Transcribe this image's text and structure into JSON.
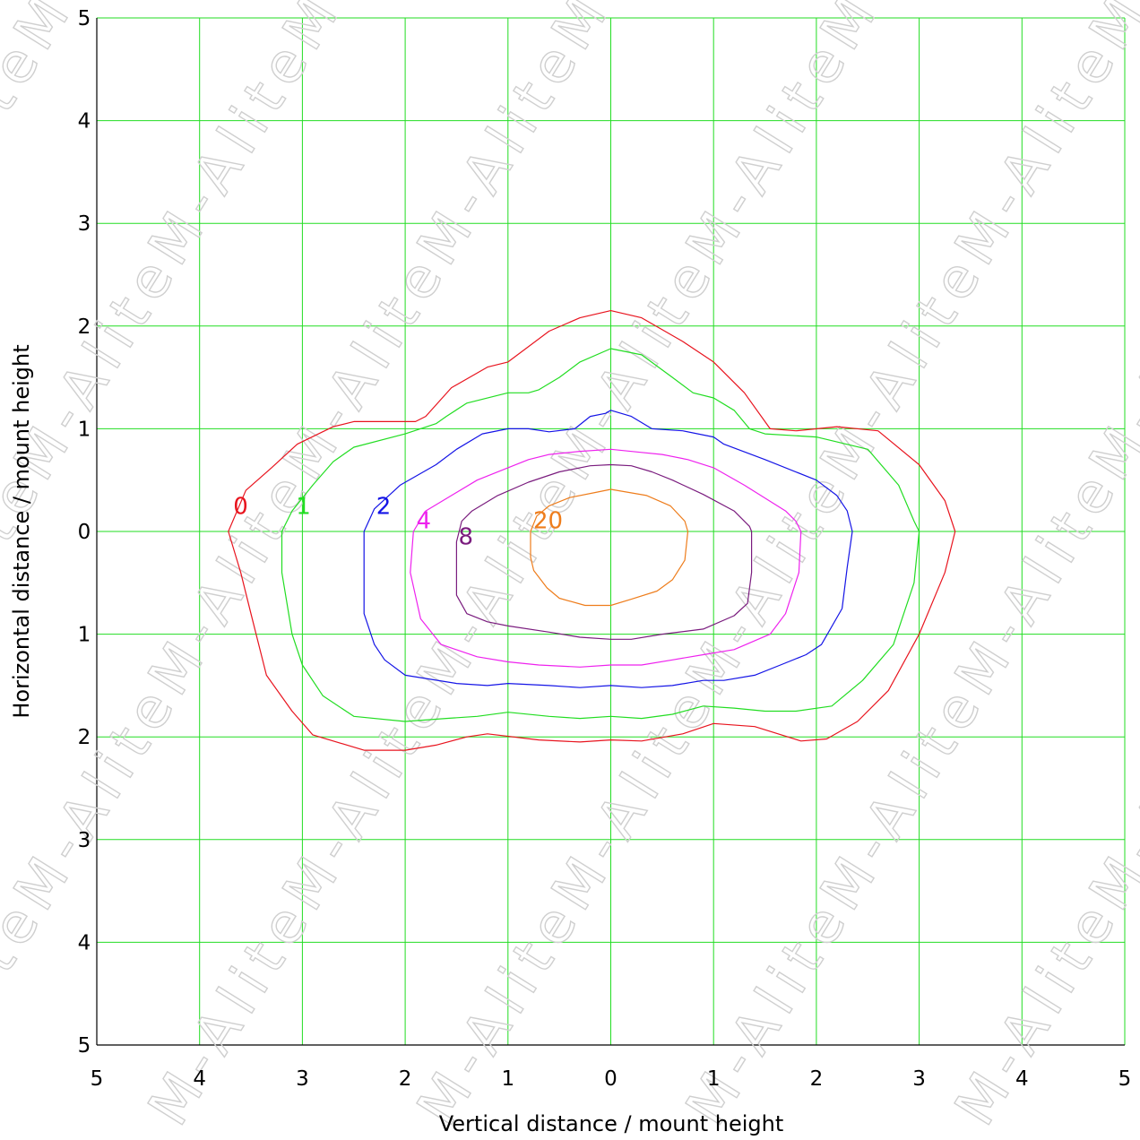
{
  "chart_data": {
    "type": "contour",
    "title": "",
    "xlabel": "Vertical distance / mount height",
    "ylabel": "Horizontal distance / mount height",
    "xlim": [
      -5,
      5
    ],
    "ylim": [
      -5,
      5
    ],
    "x_tick_labels": [
      "5",
      "4",
      "3",
      "2",
      "1",
      "0",
      "1",
      "2",
      "3",
      "4",
      "5"
    ],
    "y_tick_labels": [
      "5",
      "4",
      "3",
      "2",
      "1",
      "0",
      "1",
      "2",
      "3",
      "4",
      "5"
    ],
    "grid": true,
    "grid_color": "#22dd22",
    "watermark": "M-Alite",
    "contours": [
      {
        "label": "0",
        "color": "#e8141e",
        "label_at": [
          -3.6,
          0.25
        ],
        "points": [
          [
            0,
            2.15
          ],
          [
            0.3,
            2.08
          ],
          [
            0.7,
            1.85
          ],
          [
            1.0,
            1.65
          ],
          [
            1.3,
            1.35
          ],
          [
            1.55,
            1.0
          ],
          [
            1.8,
            0.98
          ],
          [
            2.2,
            1.02
          ],
          [
            2.6,
            0.98
          ],
          [
            3.0,
            0.65
          ],
          [
            3.25,
            0.3
          ],
          [
            3.35,
            0
          ],
          [
            3.25,
            -0.4
          ],
          [
            3.0,
            -1.0
          ],
          [
            2.7,
            -1.55
          ],
          [
            2.4,
            -1.85
          ],
          [
            2.1,
            -2.02
          ],
          [
            1.85,
            -2.04
          ],
          [
            1.4,
            -1.9
          ],
          [
            1.0,
            -1.87
          ],
          [
            0.7,
            -1.97
          ],
          [
            0.3,
            -2.04
          ],
          [
            0,
            -2.03
          ],
          [
            -0.3,
            -2.05
          ],
          [
            -0.7,
            -2.03
          ],
          [
            -1.2,
            -1.97
          ],
          [
            -1.4,
            -2.0
          ],
          [
            -1.7,
            -2.08
          ],
          [
            -2.0,
            -2.13
          ],
          [
            -2.4,
            -2.13
          ],
          [
            -2.9,
            -1.98
          ],
          [
            -3.1,
            -1.75
          ],
          [
            -3.35,
            -1.4
          ],
          [
            -3.5,
            -0.8
          ],
          [
            -3.6,
            -0.4
          ],
          [
            -3.72,
            0
          ],
          [
            -3.55,
            0.4
          ],
          [
            -3.3,
            0.62
          ],
          [
            -3.05,
            0.85
          ],
          [
            -2.7,
            1.02
          ],
          [
            -2.5,
            1.07
          ],
          [
            -1.9,
            1.07
          ],
          [
            -1.8,
            1.12
          ],
          [
            -1.55,
            1.4
          ],
          [
            -1.2,
            1.6
          ],
          [
            -1.0,
            1.65
          ],
          [
            -0.6,
            1.95
          ],
          [
            -0.3,
            2.08
          ]
        ]
      },
      {
        "label": "1",
        "color": "#22dd22",
        "label_at": [
          -2.99,
          0.25
        ],
        "points": [
          [
            0,
            1.78
          ],
          [
            0.3,
            1.72
          ],
          [
            0.6,
            1.5
          ],
          [
            0.8,
            1.35
          ],
          [
            1.0,
            1.3
          ],
          [
            1.2,
            1.18
          ],
          [
            1.35,
            1.0
          ],
          [
            1.5,
            0.95
          ],
          [
            2.0,
            0.92
          ],
          [
            2.5,
            0.8
          ],
          [
            2.8,
            0.45
          ],
          [
            2.95,
            0.1
          ],
          [
            3.0,
            0
          ],
          [
            2.95,
            -0.5
          ],
          [
            2.75,
            -1.1
          ],
          [
            2.45,
            -1.45
          ],
          [
            2.15,
            -1.7
          ],
          [
            1.8,
            -1.75
          ],
          [
            1.5,
            -1.75
          ],
          [
            1.2,
            -1.72
          ],
          [
            0.9,
            -1.7
          ],
          [
            0.6,
            -1.78
          ],
          [
            0.3,
            -1.82
          ],
          [
            0,
            -1.8
          ],
          [
            -0.3,
            -1.82
          ],
          [
            -0.6,
            -1.8
          ],
          [
            -1.0,
            -1.76
          ],
          [
            -1.3,
            -1.8
          ],
          [
            -1.6,
            -1.82
          ],
          [
            -2.0,
            -1.85
          ],
          [
            -2.5,
            -1.8
          ],
          [
            -2.8,
            -1.6
          ],
          [
            -3.0,
            -1.3
          ],
          [
            -3.1,
            -1.0
          ],
          [
            -3.2,
            -0.4
          ],
          [
            -3.2,
            0
          ],
          [
            -3.1,
            0.2
          ],
          [
            -2.9,
            0.45
          ],
          [
            -2.7,
            0.68
          ],
          [
            -2.5,
            0.82
          ],
          [
            -2.0,
            0.95
          ],
          [
            -1.7,
            1.05
          ],
          [
            -1.6,
            1.12
          ],
          [
            -1.4,
            1.25
          ],
          [
            -1.0,
            1.35
          ],
          [
            -0.8,
            1.35
          ],
          [
            -0.7,
            1.38
          ],
          [
            -0.5,
            1.5
          ],
          [
            -0.3,
            1.65
          ]
        ]
      },
      {
        "label": "2",
        "color": "#1414e6",
        "label_at": [
          -2.21,
          0.25
        ],
        "points": [
          [
            0,
            1.18
          ],
          [
            0.2,
            1.12
          ],
          [
            0.4,
            1.0
          ],
          [
            0.7,
            0.98
          ],
          [
            1.0,
            0.92
          ],
          [
            1.1,
            0.85
          ],
          [
            1.5,
            0.7
          ],
          [
            2.0,
            0.5
          ],
          [
            2.2,
            0.35
          ],
          [
            2.3,
            0.2
          ],
          [
            2.35,
            0
          ],
          [
            2.3,
            -0.35
          ],
          [
            2.25,
            -0.75
          ],
          [
            2.05,
            -1.1
          ],
          [
            1.9,
            -1.2
          ],
          [
            1.65,
            -1.3
          ],
          [
            1.4,
            -1.4
          ],
          [
            1.1,
            -1.45
          ],
          [
            0.9,
            -1.45
          ],
          [
            0.6,
            -1.5
          ],
          [
            0.3,
            -1.52
          ],
          [
            0,
            -1.5
          ],
          [
            -0.3,
            -1.52
          ],
          [
            -0.6,
            -1.5
          ],
          [
            -1.0,
            -1.48
          ],
          [
            -1.2,
            -1.5
          ],
          [
            -1.5,
            -1.48
          ],
          [
            -2.0,
            -1.4
          ],
          [
            -2.2,
            -1.25
          ],
          [
            -2.3,
            -1.1
          ],
          [
            -2.4,
            -0.8
          ],
          [
            -2.4,
            0
          ],
          [
            -2.3,
            0.22
          ],
          [
            -2.05,
            0.45
          ],
          [
            -1.7,
            0.65
          ],
          [
            -1.5,
            0.8
          ],
          [
            -1.25,
            0.95
          ],
          [
            -1.0,
            1.0
          ],
          [
            -0.8,
            1.0
          ],
          [
            -0.6,
            0.97
          ],
          [
            -0.35,
            1.0
          ],
          [
            -0.2,
            1.12
          ],
          [
            -0.05,
            1.15
          ]
        ]
      },
      {
        "label": "4",
        "color": "#ee22ee",
        "label_at": [
          -1.82,
          0.11
        ],
        "points": [
          [
            0,
            0.8
          ],
          [
            0.3,
            0.77
          ],
          [
            0.5,
            0.75
          ],
          [
            0.75,
            0.7
          ],
          [
            1.0,
            0.62
          ],
          [
            1.3,
            0.45
          ],
          [
            1.7,
            0.2
          ],
          [
            1.8,
            0.1
          ],
          [
            1.85,
            0
          ],
          [
            1.83,
            -0.4
          ],
          [
            1.7,
            -0.8
          ],
          [
            1.55,
            -1.0
          ],
          [
            1.2,
            -1.15
          ],
          [
            0.9,
            -1.2
          ],
          [
            0.6,
            -1.25
          ],
          [
            0.3,
            -1.3
          ],
          [
            0,
            -1.3
          ],
          [
            -0.3,
            -1.32
          ],
          [
            -0.7,
            -1.3
          ],
          [
            -1.0,
            -1.27
          ],
          [
            -1.3,
            -1.22
          ],
          [
            -1.65,
            -1.1
          ],
          [
            -1.85,
            -0.85
          ],
          [
            -1.95,
            -0.4
          ],
          [
            -1.92,
            0
          ],
          [
            -1.8,
            0.2
          ],
          [
            -1.55,
            0.35
          ],
          [
            -1.3,
            0.5
          ],
          [
            -1.0,
            0.62
          ],
          [
            -0.8,
            0.7
          ],
          [
            -0.6,
            0.75
          ],
          [
            -0.3,
            0.78
          ]
        ]
      },
      {
        "label": "8",
        "color": "#7a1c7e",
        "label_at": [
          -1.41,
          -0.05
        ],
        "points": [
          [
            0,
            0.65
          ],
          [
            0.2,
            0.64
          ],
          [
            0.4,
            0.58
          ],
          [
            0.6,
            0.5
          ],
          [
            0.9,
            0.36
          ],
          [
            1.2,
            0.2
          ],
          [
            1.35,
            0.05
          ],
          [
            1.37,
            0
          ],
          [
            1.37,
            -0.4
          ],
          [
            1.33,
            -0.7
          ],
          [
            1.2,
            -0.82
          ],
          [
            0.9,
            -0.95
          ],
          [
            0.5,
            -1.0
          ],
          [
            0.2,
            -1.05
          ],
          [
            0,
            -1.05
          ],
          [
            -0.3,
            -1.03
          ],
          [
            -0.6,
            -0.98
          ],
          [
            -1.0,
            -0.92
          ],
          [
            -1.2,
            -0.88
          ],
          [
            -1.4,
            -0.8
          ],
          [
            -1.5,
            -0.62
          ],
          [
            -1.5,
            -0.3
          ],
          [
            -1.5,
            -0.1
          ],
          [
            -1.45,
            0.1
          ],
          [
            -1.35,
            0.2
          ],
          [
            -1.1,
            0.35
          ],
          [
            -0.8,
            0.48
          ],
          [
            -0.5,
            0.58
          ],
          [
            -0.2,
            0.64
          ]
        ]
      },
      {
        "label": "20",
        "color": "#ee7d1c",
        "label_at": [
          -0.61,
          0.11
        ],
        "points": [
          [
            0,
            0.41
          ],
          [
            0.35,
            0.35
          ],
          [
            0.58,
            0.25
          ],
          [
            0.72,
            0.1
          ],
          [
            0.75,
            0
          ],
          [
            0.72,
            -0.28
          ],
          [
            0.6,
            -0.47
          ],
          [
            0.45,
            -0.58
          ],
          [
            0.2,
            -0.66
          ],
          [
            0,
            -0.72
          ],
          [
            -0.25,
            -0.72
          ],
          [
            -0.5,
            -0.65
          ],
          [
            -0.62,
            -0.55
          ],
          [
            -0.75,
            -0.38
          ],
          [
            -0.78,
            -0.25
          ],
          [
            -0.78,
            0
          ],
          [
            -0.72,
            0.15
          ],
          [
            -0.6,
            0.25
          ],
          [
            -0.4,
            0.33
          ],
          [
            -0.15,
            0.38
          ]
        ]
      }
    ]
  }
}
